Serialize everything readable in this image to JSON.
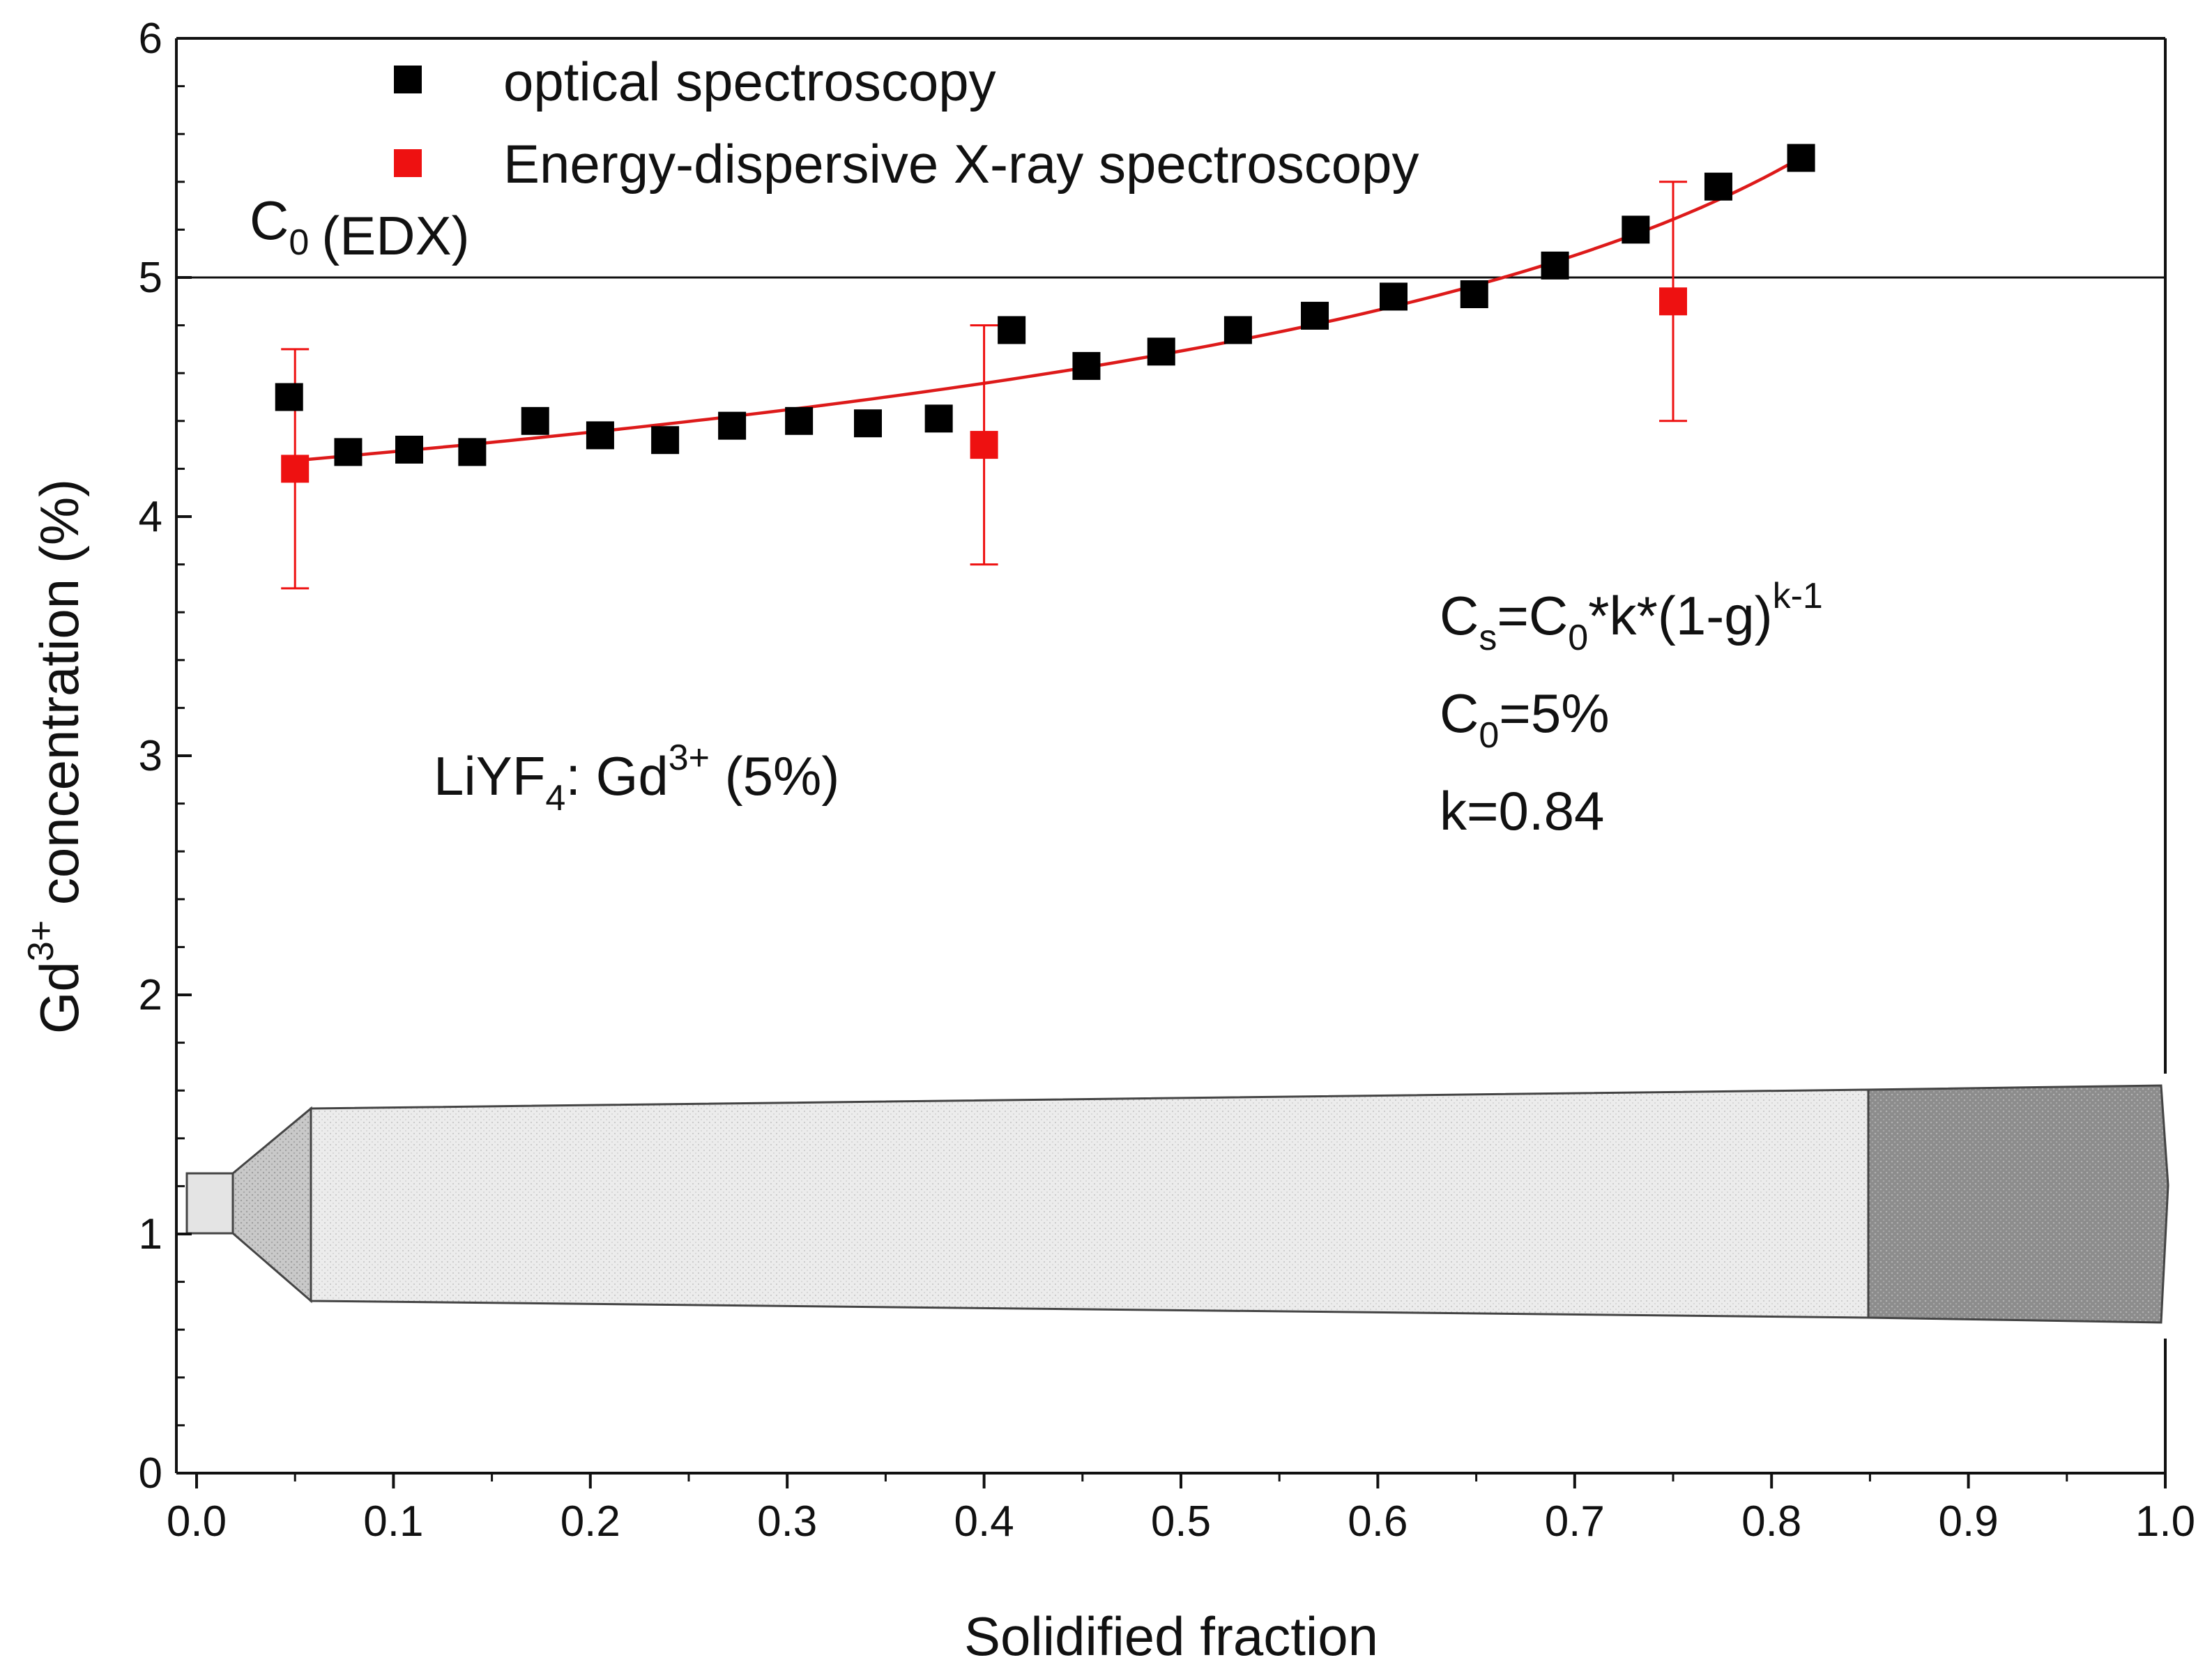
{
  "chart_data": {
    "type": "scatter",
    "xlabel": "Solidified fraction",
    "ylabel": {
      "base": "Gd",
      "sup": "3+",
      "rest": " concentration (%)"
    },
    "xlim": [
      0,
      1.0
    ],
    "ylim": [
      0,
      6
    ],
    "x_ticks": [
      "0.0",
      "0.1",
      "0.2",
      "0.3",
      "0.4",
      "0.5",
      "0.6",
      "0.7",
      "0.8",
      "0.9",
      "1.0"
    ],
    "y_ticks": [
      "0",
      "1",
      "2",
      "3",
      "4",
      "5",
      "6"
    ],
    "grid": false,
    "legend_position": "top-left",
    "series": [
      {
        "name": "optical spectroscopy",
        "color": "#000000",
        "marker": "square",
        "x": [
          0.047,
          0.077,
          0.108,
          0.14,
          0.172,
          0.205,
          0.238,
          0.272,
          0.306,
          0.341,
          0.377,
          0.414,
          0.452,
          0.49,
          0.529,
          0.568,
          0.608,
          0.649,
          0.69,
          0.731,
          0.773,
          0.815
        ],
        "y": [
          4.5,
          4.27,
          4.28,
          4.27,
          4.4,
          4.34,
          4.32,
          4.38,
          4.4,
          4.39,
          4.41,
          4.78,
          4.63,
          4.69,
          4.78,
          4.84,
          4.92,
          4.93,
          5.05,
          5.2,
          5.38,
          5.5
        ]
      },
      {
        "name": "Energy-dispersive X-ray spectroscopy",
        "color": "#ee1111",
        "marker": "square",
        "x": [
          0.05,
          0.4,
          0.75
        ],
        "y": [
          4.2,
          4.3,
          4.9
        ],
        "yerr": [
          0.5,
          0.5,
          0.5
        ]
      }
    ],
    "fit": {
      "color": "#dd1a1a",
      "C0": 5,
      "k": 0.84,
      "x_range": [
        0.05,
        0.815
      ]
    },
    "reference_line": {
      "y": 5,
      "label_main": "C",
      "label_sub": "0",
      "label_rest": "(EDX)"
    },
    "annotations": {
      "formula": {
        "cs": "C",
        "cs_sub": "s",
        "eq": "=C",
        "c0_sub": "0",
        "rest": "*k*(1-g)",
        "sup": "k-1"
      },
      "c0": {
        "main": "C",
        "sub": "0",
        "rest": "=5%"
      },
      "k": "k=0.84",
      "material": {
        "pre": "LiYF",
        "sub": "4",
        "mid": ": Gd",
        "sup": "3+",
        "post": " (5%)"
      }
    },
    "colors": {
      "axis": "#111111",
      "crystal_light": "#ececec",
      "crystal_dark": "#8a8a8a",
      "seed": "#e2e2e2",
      "cone": "#c4c4c4"
    }
  }
}
